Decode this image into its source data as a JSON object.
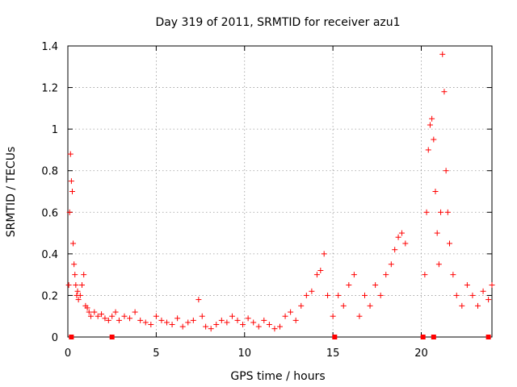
{
  "chart_data": {
    "type": "scatter",
    "title": "Day 319 of 2011, SRMTID for receiver azu1",
    "xlabel": "GPS time / hours",
    "ylabel": "SRMTID / TECUs",
    "xlim": [
      0,
      24
    ],
    "ylim": [
      0,
      1.4
    ],
    "xticks": [
      0,
      5,
      10,
      15,
      20
    ],
    "xtick_labels": [
      "0",
      "5",
      "10",
      "15",
      "20"
    ],
    "yticks": [
      0,
      0.2,
      0.4,
      0.6,
      0.8,
      1.0,
      1.2,
      1.4
    ],
    "ytick_labels": [
      "0",
      "0.2",
      "0.4",
      "0.6",
      "0.8",
      "1",
      "1.2",
      "1.4"
    ],
    "grid": true,
    "marker": "plus",
    "marker_color": "#ff0000",
    "series": [
      {
        "name": "",
        "x": [
          0.05,
          0.1,
          0.15,
          0.2,
          0.25,
          0.3,
          0.35,
          0.4,
          0.45,
          0.5,
          0.55,
          0.6,
          0.7,
          0.8,
          0.9,
          1.0,
          1.1,
          1.2,
          1.3,
          1.5,
          1.7,
          1.9,
          2.1,
          2.3,
          2.5,
          2.7,
          2.9,
          3.2,
          3.5,
          3.8,
          4.1,
          4.4,
          4.7,
          5.0,
          5.3,
          5.6,
          5.9,
          6.2,
          6.5,
          6.8,
          7.1,
          7.4,
          7.6,
          7.8,
          8.1,
          8.4,
          8.7,
          9.0,
          9.3,
          9.6,
          9.9,
          10.2,
          10.5,
          10.8,
          11.1,
          11.4,
          11.7,
          12.0,
          12.3,
          12.6,
          12.9,
          13.2,
          13.5,
          13.8,
          14.1,
          14.3,
          14.5,
          14.7,
          15.0,
          15.3,
          15.6,
          15.9,
          16.2,
          16.5,
          16.8,
          17.1,
          17.4,
          17.7,
          18.0,
          18.3,
          18.5,
          18.7,
          18.9,
          19.1,
          20.2,
          20.3,
          20.4,
          20.5,
          20.6,
          20.7,
          20.8,
          20.9,
          21.0,
          21.1,
          21.2,
          21.3,
          21.4,
          21.5,
          21.6,
          21.8,
          22.0,
          22.3,
          22.6,
          22.9,
          23.2,
          23.5,
          23.8,
          24.0
        ],
        "y": [
          0.25,
          0.6,
          0.88,
          0.75,
          0.7,
          0.45,
          0.35,
          0.3,
          0.25,
          0.2,
          0.22,
          0.18,
          0.2,
          0.25,
          0.3,
          0.15,
          0.14,
          0.12,
          0.1,
          0.12,
          0.1,
          0.11,
          0.09,
          0.08,
          0.1,
          0.12,
          0.08,
          0.1,
          0.09,
          0.12,
          0.08,
          0.07,
          0.06,
          0.1,
          0.08,
          0.07,
          0.06,
          0.09,
          0.05,
          0.07,
          0.08,
          0.18,
          0.1,
          0.05,
          0.04,
          0.06,
          0.08,
          0.07,
          0.1,
          0.08,
          0.06,
          0.09,
          0.07,
          0.05,
          0.08,
          0.06,
          0.04,
          0.05,
          0.1,
          0.12,
          0.08,
          0.15,
          0.2,
          0.22,
          0.3,
          0.32,
          0.4,
          0.2,
          0.1,
          0.2,
          0.15,
          0.25,
          0.3,
          0.1,
          0.2,
          0.15,
          0.25,
          0.2,
          0.3,
          0.35,
          0.42,
          0.48,
          0.5,
          0.45,
          0.3,
          0.6,
          0.9,
          1.02,
          1.05,
          0.95,
          0.7,
          0.5,
          0.35,
          0.6,
          1.36,
          1.18,
          0.8,
          0.6,
          0.45,
          0.3,
          0.2,
          0.15,
          0.25,
          0.2,
          0.15,
          0.22,
          0.18,
          0.25
        ]
      }
    ],
    "axis_markers_x": [
      0.2,
      2.5,
      15.1,
      20.1,
      20.7,
      23.8
    ]
  }
}
